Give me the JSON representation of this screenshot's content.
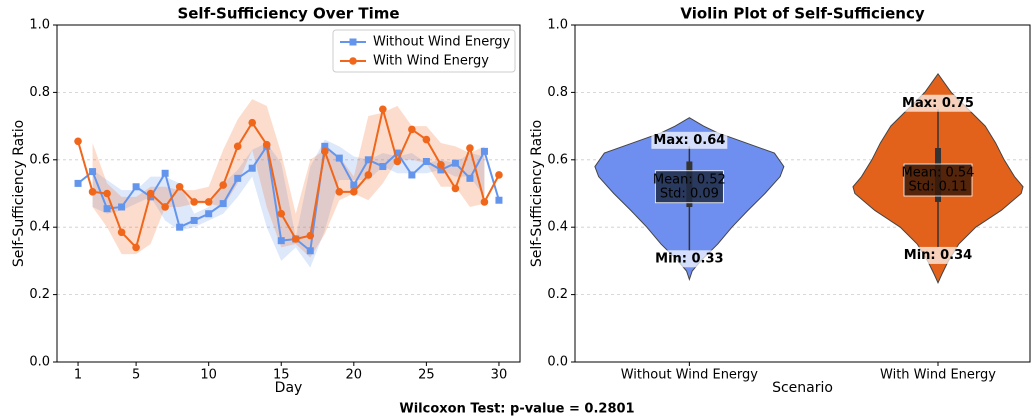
{
  "chart_data": [
    {
      "type": "line",
      "title": "Self-Sufficiency Over Time",
      "xlabel": "Day",
      "ylabel": "Self-Sufficiency Ratio",
      "x": [
        1,
        2,
        3,
        4,
        5,
        6,
        7,
        8,
        9,
        10,
        11,
        12,
        13,
        14,
        15,
        16,
        17,
        18,
        19,
        20,
        21,
        22,
        23,
        24,
        25,
        26,
        27,
        28,
        29,
        30
      ],
      "xlim": [
        -0.45,
        31.45
      ],
      "xticks": [
        1,
        5,
        10,
        15,
        20,
        25,
        30
      ],
      "ylim": [
        0,
        1
      ],
      "yticks": [
        {
          "value": 0,
          "label": "0.0"
        },
        0.2,
        0.4,
        0.6,
        0.8,
        {
          "value": 1,
          "label": "1.0"
        }
      ],
      "grid": true,
      "legend": "upper right",
      "series": [
        {
          "name": "Without Wind Energy",
          "color": "#6495ed",
          "marker": "square",
          "values": [
            0.53,
            0.565,
            0.455,
            0.46,
            0.52,
            0.49,
            0.56,
            0.4,
            0.42,
            0.44,
            0.47,
            0.545,
            0.575,
            0.64,
            0.36,
            0.365,
            0.33,
            0.64,
            0.605,
            0.525,
            0.6,
            0.58,
            0.62,
            0.555,
            0.595,
            0.57,
            0.59,
            0.545,
            0.625,
            0.48
          ],
          "band_lower": [
            null,
            0.46,
            0.44,
            0.45,
            0.47,
            0.49,
            0.42,
            0.39,
            0.4,
            0.42,
            0.44,
            0.49,
            0.55,
            0.4,
            0.3,
            0.34,
            0.28,
            0.39,
            0.54,
            0.54,
            0.54,
            0.58,
            0.56,
            0.56,
            0.56,
            0.57,
            0.55,
            0.55,
            0.49,
            null
          ],
          "band_upper": [
            null,
            0.57,
            0.54,
            0.51,
            0.51,
            0.55,
            0.55,
            0.53,
            0.44,
            0.46,
            0.53,
            0.57,
            0.63,
            0.65,
            0.59,
            0.37,
            0.58,
            0.66,
            0.64,
            0.61,
            0.6,
            0.62,
            0.61,
            0.62,
            0.59,
            0.6,
            0.59,
            0.62,
            0.61,
            null
          ]
        },
        {
          "name": "With Wind Energy",
          "color": "#f0661a",
          "marker": "circle",
          "values": [
            0.655,
            0.505,
            0.5,
            0.385,
            0.34,
            0.5,
            0.46,
            0.52,
            0.475,
            0.475,
            0.525,
            0.64,
            0.71,
            0.645,
            0.44,
            0.365,
            0.375,
            0.625,
            0.505,
            0.505,
            0.555,
            0.75,
            0.595,
            0.69,
            0.66,
            0.585,
            0.515,
            0.635,
            0.475,
            0.555
          ],
          "band_lower": [
            null,
            0.46,
            0.4,
            0.32,
            0.32,
            0.35,
            0.46,
            0.46,
            0.47,
            0.47,
            0.46,
            0.53,
            0.63,
            0.46,
            0.34,
            0.35,
            0.31,
            0.38,
            0.48,
            0.5,
            0.48,
            0.53,
            0.6,
            0.6,
            0.59,
            0.52,
            0.52,
            0.46,
            0.47,
            null
          ],
          "band_upper": [
            null,
            0.65,
            0.53,
            0.49,
            0.49,
            0.52,
            0.52,
            0.51,
            0.51,
            0.52,
            0.63,
            0.72,
            0.78,
            0.76,
            0.62,
            0.44,
            0.6,
            0.63,
            0.61,
            0.55,
            0.73,
            0.74,
            0.76,
            0.7,
            0.7,
            0.65,
            0.64,
            0.62,
            0.64,
            null
          ]
        }
      ]
    },
    {
      "type": "violin",
      "title": "Violin Plot of Self-Sufficiency",
      "xlabel": "Scenario",
      "ylabel": "Self-Sufficiency Ratio",
      "categories": [
        "Without Wind Energy",
        "With Wind Energy"
      ],
      "xlim": [
        -0.46,
        1.37
      ],
      "ylim": [
        0,
        1
      ],
      "yticks": [
        {
          "value": 0,
          "label": "0.0"
        },
        0.2,
        0.4,
        0.6,
        0.8,
        {
          "value": 1,
          "label": "1.0"
        }
      ],
      "grid": true,
      "violins": [
        {
          "color": "#6f8ff0",
          "label_box": "#1f2a44",
          "kde_y": [
            0.245,
            0.27,
            0.3,
            0.35,
            0.4,
            0.45,
            0.5,
            0.55,
            0.58,
            0.62,
            0.65,
            0.68,
            0.7,
            0.725
          ],
          "kde_width": [
            0,
            0.03,
            0.12,
            0.3,
            0.45,
            0.62,
            0.8,
            0.96,
            1.0,
            0.9,
            0.6,
            0.3,
            0.15,
            0
          ],
          "min": 0.33,
          "q1": 0.46,
          "q3": 0.595,
          "max": 0.64,
          "mean": 0.52,
          "labels": {
            "max": "Max: 0.64",
            "mean": "Mean: 0.52",
            "std": "Std: 0.09",
            "min": "Min: 0.33"
          }
        },
        {
          "color": "#e2621b",
          "label_box": "#3b1a08",
          "kde_y": [
            0.235,
            0.26,
            0.3,
            0.35,
            0.4,
            0.45,
            0.5,
            0.52,
            0.55,
            0.6,
            0.65,
            0.7,
            0.75,
            0.8,
            0.855
          ],
          "kde_width": [
            0,
            0.04,
            0.11,
            0.22,
            0.4,
            0.67,
            0.88,
            0.9,
            0.81,
            0.7,
            0.61,
            0.5,
            0.32,
            0.14,
            0
          ],
          "min": 0.34,
          "q1": 0.475,
          "q3": 0.635,
          "max": 0.75,
          "mean": 0.54,
          "labels": {
            "max": "Max: 0.75",
            "mean": "Mean: 0.54",
            "std": "Std: 0.11",
            "min": "Min: 0.34"
          }
        }
      ]
    },
    {
      "type": "annotation",
      "text": "Wilcoxon Test: p-value = 0.2801",
      "color": "#f0661a"
    }
  ]
}
